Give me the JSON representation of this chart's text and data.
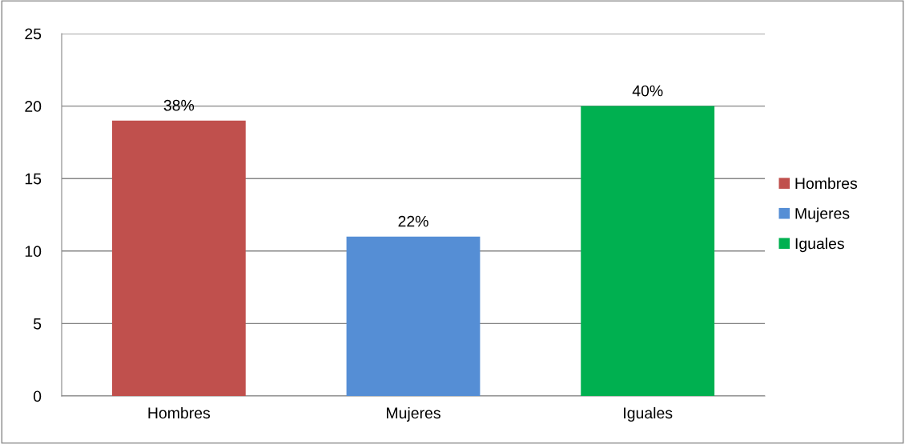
{
  "chart_data": {
    "type": "bar",
    "categories": [
      "Hombres",
      "Mujeres",
      "Iguales"
    ],
    "series": [
      {
        "name": "Hombres",
        "color": "#c0504d",
        "values": [
          19,
          null,
          null
        ]
      },
      {
        "name": "Mujeres",
        "color": "#558ed5",
        "values": [
          null,
          11,
          null
        ]
      },
      {
        "name": "Iguales",
        "color": "#00b050",
        "values": [
          null,
          null,
          20
        ]
      }
    ],
    "annotations": [
      {
        "text": "38%",
        "x": "Hombres",
        "y": 19
      },
      {
        "text": "22%",
        "x": "Mujeres",
        "y": 11
      },
      {
        "text": "40%",
        "x": "Iguales",
        "y": 20
      }
    ],
    "ylim": [
      0,
      25
    ],
    "yticks": [
      0,
      5,
      10,
      15,
      20,
      25
    ],
    "grid": "y",
    "legend": "right"
  }
}
